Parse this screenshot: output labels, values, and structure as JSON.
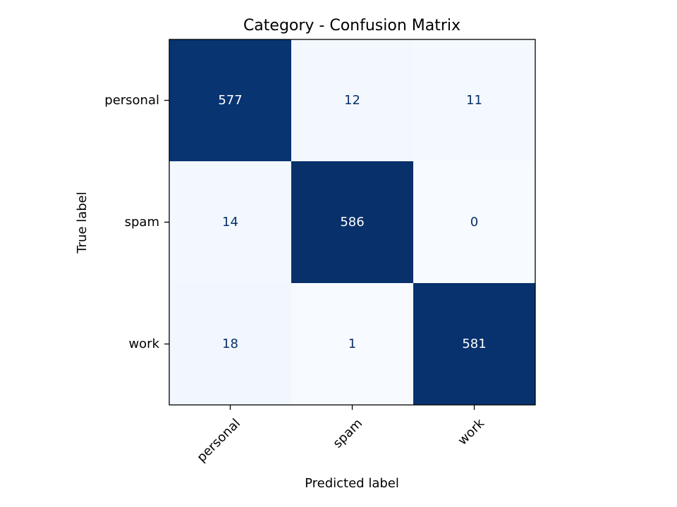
{
  "chart_data": {
    "type": "heatmap",
    "title": "Category - Confusion Matrix",
    "xlabel": "Predicted label",
    "ylabel": "True label",
    "x_categories": [
      "personal",
      "spam",
      "work"
    ],
    "y_categories": [
      "personal",
      "spam",
      "work"
    ],
    "values": [
      [
        577,
        12,
        11
      ],
      [
        14,
        586,
        0
      ],
      [
        18,
        1,
        581
      ]
    ],
    "colormap": "Blues",
    "colors": {
      "low": "#f7fbff",
      "high": "#08306b",
      "text_dark": "#08306b",
      "text_light": "#ffffff"
    },
    "grid": false,
    "legend": "none"
  }
}
